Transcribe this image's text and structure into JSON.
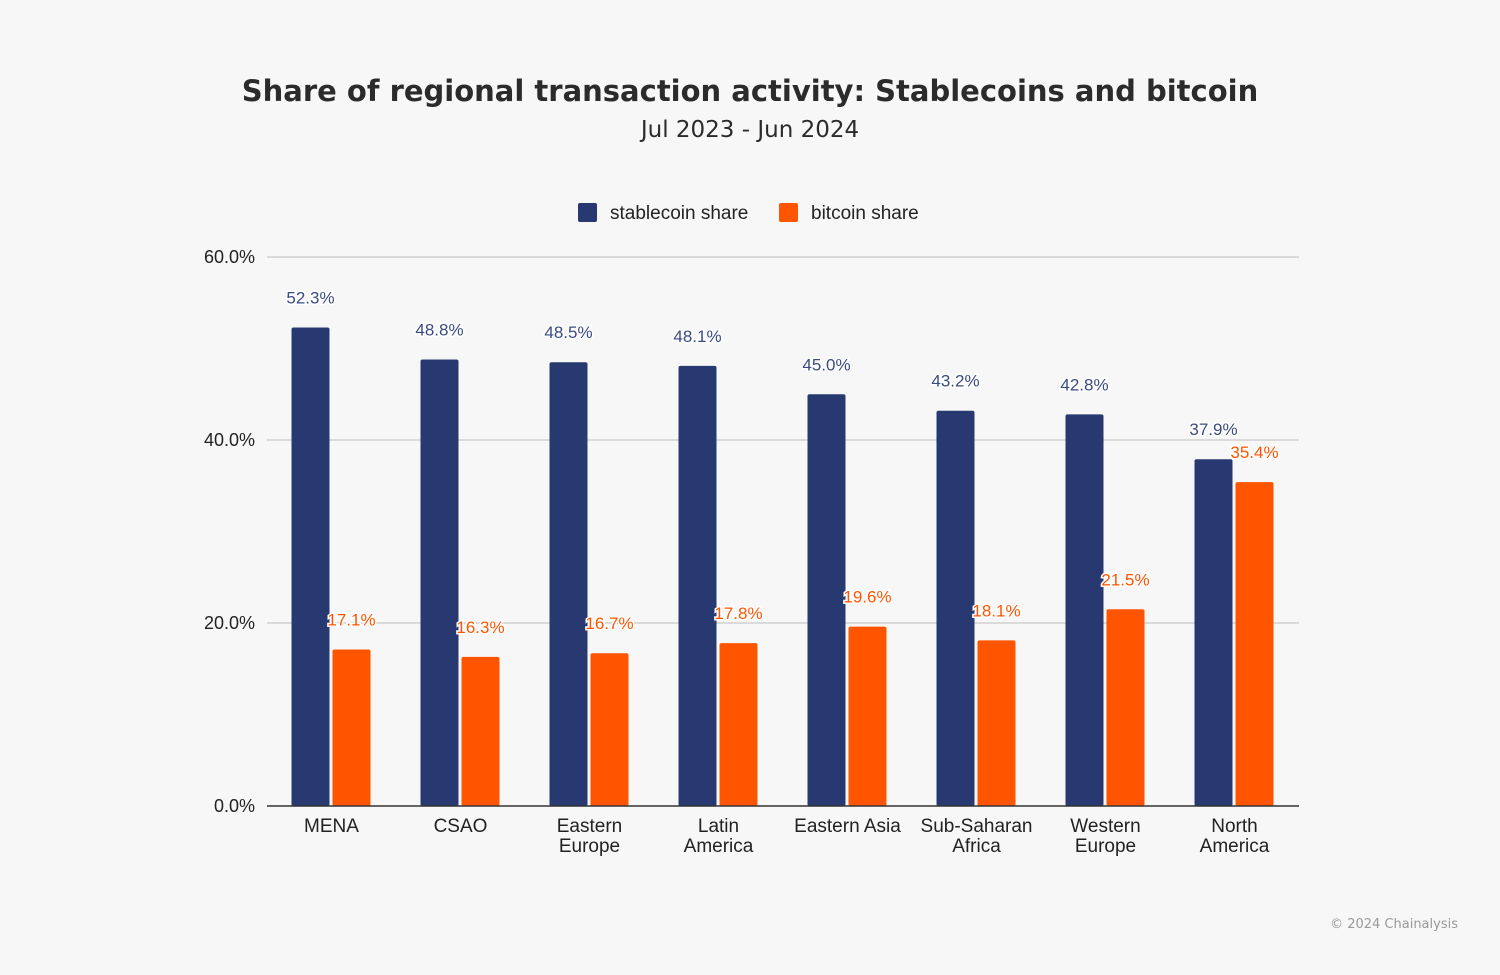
{
  "chart_data": {
    "type": "bar",
    "title": "Share of regional transaction activity: Stablecoins and bitcoin",
    "subtitle": "Jul 2023 - Jun 2024",
    "xlabel": "",
    "ylabel": "",
    "ylim": [
      0,
      60
    ],
    "yticks": [
      "0.0%",
      "20.0%",
      "40.0%",
      "60.0%"
    ],
    "grid": true,
    "legend_position": "top",
    "categories": [
      [
        "MENA"
      ],
      [
        "CSAO"
      ],
      [
        "Eastern",
        "Europe"
      ],
      [
        "Latin",
        "America"
      ],
      [
        "Eastern Asia"
      ],
      [
        "Sub-Saharan",
        "Africa"
      ],
      [
        "Western",
        "Europe"
      ],
      [
        "North",
        "America"
      ]
    ],
    "series": [
      {
        "name": "stablecoin share",
        "color": "#283870",
        "label_color": "#3b4a82",
        "values": [
          52.3,
          48.8,
          48.5,
          48.1,
          45.0,
          43.2,
          42.8,
          37.9
        ],
        "labels": [
          "52.3%",
          "48.8%",
          "48.5%",
          "48.1%",
          "45.0%",
          "43.2%",
          "42.8%",
          "37.9%"
        ]
      },
      {
        "name": "bitcoin share",
        "color": "#ff5400",
        "label_color": "#ff5400",
        "values": [
          17.1,
          16.3,
          16.7,
          17.8,
          19.6,
          18.1,
          21.5,
          35.4
        ],
        "labels": [
          "17.1%",
          "16.3%",
          "16.7%",
          "17.8%",
          "19.6%",
          "18.1%",
          "21.5%",
          "35.4%"
        ]
      }
    ]
  },
  "footer": {
    "credit": "© 2024 Chainalysis"
  }
}
